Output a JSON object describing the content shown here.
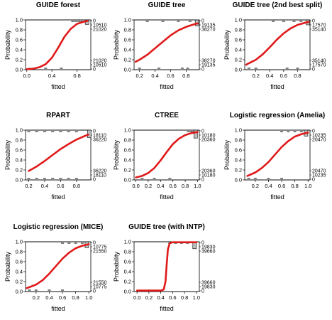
{
  "chart_data": [
    {
      "type": "line",
      "title": "GUIDE forest",
      "xlabel": "fitted",
      "ylabel": "Probability",
      "xlim": [
        -0.02,
        1.02
      ],
      "ylim": [
        0,
        1
      ],
      "xticks": [
        "0.0",
        "0.4",
        "0.8"
      ],
      "xtick_values": [
        0.0,
        0.4,
        0.8
      ],
      "yticks": [
        "0.0",
        "0.2",
        "0.4",
        "0.6",
        "0.8",
        "1.0"
      ],
      "right_axis_labels_top": [
        "0",
        "10510",
        "21020"
      ],
      "right_axis_labels_bottom": [
        "21020",
        "10510",
        "0"
      ],
      "curve": {
        "x": [
          0.0,
          0.1,
          0.2,
          0.3,
          0.4,
          0.5,
          0.6,
          0.7,
          0.8,
          0.9,
          0.97
        ],
        "y": [
          0.01,
          0.02,
          0.05,
          0.11,
          0.24,
          0.44,
          0.66,
          0.82,
          0.92,
          0.96,
          0.98
        ]
      },
      "rug_top": [
        0.73,
        0.78,
        0.83,
        0.88
      ],
      "rug_bottom": [
        0.05,
        0.15,
        0.3,
        0.55
      ],
      "box": {
        "x": 0.96,
        "from": 0.91,
        "to": 1.0
      }
    },
    {
      "type": "line",
      "title": "GUIDE tree",
      "xlabel": "fitted",
      "ylabel": "Probability",
      "xlim": [
        0.13,
        0.97
      ],
      "ylim": [
        0,
        1
      ],
      "xticks": [
        "0.2",
        "0.4",
        "0.6",
        "0.8"
      ],
      "xtick_values": [
        0.2,
        0.4,
        0.6,
        0.8
      ],
      "yticks": [
        "0.0",
        "0.2",
        "0.4",
        "0.6",
        "0.8",
        "1.0"
      ],
      "right_axis_labels_top": [
        "0",
        "19135",
        "38270"
      ],
      "right_axis_labels_bottom": [
        "38270",
        "19135",
        "0"
      ],
      "curve": {
        "x": [
          0.15,
          0.2,
          0.3,
          0.4,
          0.5,
          0.6,
          0.7,
          0.8,
          0.9,
          0.95
        ],
        "y": [
          0.16,
          0.2,
          0.3,
          0.43,
          0.56,
          0.69,
          0.79,
          0.86,
          0.91,
          0.93
        ]
      },
      "rug_top": [
        0.3,
        0.5,
        0.7,
        0.85
      ],
      "rug_bottom": [
        0.2,
        0.45,
        0.75,
        0.82
      ],
      "box": {
        "x": 0.94,
        "from": 0.88,
        "to": 1.0
      }
    },
    {
      "type": "line",
      "title": "GUIDE tree (2nd best split)",
      "xlabel": "fitted",
      "ylabel": "Probability",
      "xlim": [
        0.04,
        0.98
      ],
      "ylim": [
        0,
        1
      ],
      "xticks": [
        "0.2",
        "0.4",
        "0.6",
        "0.8"
      ],
      "xtick_values": [
        0.2,
        0.4,
        0.6,
        0.8
      ],
      "yticks": [
        "0.0",
        "0.2",
        "0.4",
        "0.6",
        "0.8",
        "1.0"
      ],
      "right_axis_labels_top": [
        "0",
        "17570",
        "35140"
      ],
      "right_axis_labels_bottom": [
        "35140",
        "17570",
        "0"
      ],
      "curve": {
        "x": [
          0.06,
          0.1,
          0.2,
          0.3,
          0.4,
          0.5,
          0.6,
          0.7,
          0.8,
          0.9,
          0.96
        ],
        "y": [
          0.1,
          0.13,
          0.2,
          0.31,
          0.45,
          0.6,
          0.73,
          0.83,
          0.9,
          0.94,
          0.96
        ]
      },
      "rug_top": [
        0.45,
        0.6,
        0.75,
        0.85
      ],
      "rug_bottom": [
        0.1,
        0.2,
        0.65,
        0.8
      ],
      "box": {
        "x": 0.95,
        "from": 0.9,
        "to": 1.0
      }
    },
    {
      "type": "line",
      "title": "RPART",
      "xlabel": "fitted",
      "ylabel": "Probability",
      "xlim": [
        0.16,
        0.98
      ],
      "ylim": [
        0,
        1
      ],
      "xticks": [
        "0.2",
        "0.4",
        "0.6",
        "0.8"
      ],
      "xtick_values": [
        0.2,
        0.4,
        0.6,
        0.8
      ],
      "yticks": [
        "0.0",
        "0.2",
        "0.4",
        "0.6",
        "0.8",
        "1.0"
      ],
      "right_axis_labels_top": [
        "0",
        "18110",
        "36220"
      ],
      "right_axis_labels_bottom": [
        "36220",
        "18110",
        "0"
      ],
      "curve": {
        "x": [
          0.2,
          0.3,
          0.4,
          0.5,
          0.6,
          0.7,
          0.8,
          0.9,
          0.95
        ],
        "y": [
          0.18,
          0.27,
          0.38,
          0.5,
          0.62,
          0.72,
          0.81,
          0.88,
          0.91
        ]
      },
      "rug_top": [
        0.2,
        0.3,
        0.4,
        0.5,
        0.6,
        0.7,
        0.8
      ],
      "rug_bottom": [
        0.2,
        0.3,
        0.4,
        0.5,
        0.6,
        0.7,
        0.8
      ],
      "box": {
        "x": 0.96,
        "from": 0.85,
        "to": 1.0
      }
    },
    {
      "type": "line",
      "title": "CTREE",
      "xlabel": "fitted",
      "ylabel": "Probability",
      "xlim": [
        -0.03,
        1.03
      ],
      "ylim": [
        0,
        1
      ],
      "xticks": [
        "0.0",
        "0.2",
        "0.4",
        "0.6",
        "0.8",
        "1.0"
      ],
      "xtick_values": [
        0.0,
        0.2,
        0.4,
        0.6,
        0.8,
        1.0
      ],
      "yticks": [
        "0.0",
        "0.2",
        "0.4",
        "0.6",
        "0.8",
        "1.0"
      ],
      "right_axis_labels_top": [
        "0",
        "10180",
        "20360"
      ],
      "right_axis_labels_bottom": [
        "20360",
        "10180",
        "0"
      ],
      "curve": {
        "x": [
          0.0,
          0.1,
          0.2,
          0.3,
          0.4,
          0.5,
          0.6,
          0.7,
          0.8,
          0.9,
          1.0
        ],
        "y": [
          0.05,
          0.08,
          0.14,
          0.24,
          0.39,
          0.56,
          0.72,
          0.83,
          0.9,
          0.94,
          0.96
        ]
      },
      "rug_top": [
        0.85,
        0.9,
        0.95
      ],
      "rug_bottom": [
        0.1,
        0.3,
        0.55
      ],
      "box": {
        "x": 0.97,
        "from": 0.84,
        "to": 1.0
      }
    },
    {
      "type": "line",
      "title": "Logistic regression (Amelia)",
      "xlabel": "fitted",
      "ylabel": "Probability",
      "xlim": [
        0.04,
        1.03
      ],
      "ylim": [
        0,
        1
      ],
      "xticks": [
        "0.2",
        "0.4",
        "0.6",
        "0.8",
        "1.0"
      ],
      "xtick_values": [
        0.2,
        0.4,
        0.6,
        0.8,
        1.0
      ],
      "yticks": [
        "0.0",
        "0.2",
        "0.4",
        "0.6",
        "0.8",
        "1.0"
      ],
      "right_axis_labels_top": [
        "0",
        "10235",
        "20470"
      ],
      "right_axis_labels_bottom": [
        "20470",
        "10235",
        "0"
      ],
      "curve": {
        "x": [
          0.08,
          0.2,
          0.3,
          0.4,
          0.5,
          0.6,
          0.7,
          0.8,
          0.9,
          1.0
        ],
        "y": [
          0.08,
          0.15,
          0.24,
          0.36,
          0.51,
          0.66,
          0.78,
          0.87,
          0.92,
          0.95
        ]
      },
      "rug_top": [
        0.6,
        0.7,
        0.8,
        0.9
      ],
      "rug_bottom": [
        0.1,
        0.2,
        0.4,
        0.6
      ],
      "box": {
        "x": 0.97,
        "from": 0.88,
        "to": 1.0
      }
    },
    {
      "type": "line",
      "title": "Logistic regression (MICE)",
      "xlabel": "fitted",
      "ylabel": "Probability",
      "xlim": [
        0.04,
        1.03
      ],
      "ylim": [
        0,
        1
      ],
      "xticks": [
        "0.2",
        "0.4",
        "0.6",
        "0.8",
        "1.0"
      ],
      "xtick_values": [
        0.2,
        0.4,
        0.6,
        0.8,
        1.0
      ],
      "yticks": [
        "0.0",
        "0.2",
        "0.4",
        "0.6",
        "0.8",
        "1.0"
      ],
      "right_axis_labels_top": [
        "0",
        "10775",
        "21550"
      ],
      "right_axis_labels_bottom": [
        "21550",
        "10775",
        "0"
      ],
      "curve": {
        "x": [
          0.06,
          0.2,
          0.3,
          0.4,
          0.5,
          0.6,
          0.7,
          0.8,
          0.9,
          1.0
        ],
        "y": [
          0.07,
          0.14,
          0.23,
          0.36,
          0.51,
          0.66,
          0.78,
          0.87,
          0.92,
          0.95
        ]
      },
      "rug_top": [
        0.6,
        0.7,
        0.8,
        0.9
      ],
      "rug_bottom": [
        0.1,
        0.2,
        0.4,
        0.6
      ],
      "box": {
        "x": 0.97,
        "from": 0.88,
        "to": 1.0
      }
    },
    {
      "type": "line",
      "title": "GUIDE tree (with INTP)",
      "xlabel": "fitted",
      "ylabel": "Probability",
      "xlim": [
        -0.05,
        1.05
      ],
      "ylim": [
        0,
        1
      ],
      "xticks": [
        "0.0",
        "0.2",
        "0.4",
        "0.6",
        "0.8",
        "1.0"
      ],
      "xtick_values": [
        0.0,
        0.2,
        0.4,
        0.6,
        0.8,
        1.0
      ],
      "yticks": [
        "0.0",
        "0.2",
        "0.4",
        "0.6",
        "0.8",
        "1.0"
      ],
      "right_axis_labels_top": [
        "0",
        "19830",
        "39660"
      ],
      "right_axis_labels_bottom": [
        "39660",
        "19830",
        "0"
      ],
      "curve": {
        "x": [
          0.0,
          0.2,
          0.4,
          0.45,
          0.48,
          0.5,
          0.52,
          0.55,
          0.6,
          0.8,
          1.0
        ],
        "y": [
          0.02,
          0.02,
          0.02,
          0.04,
          0.2,
          0.55,
          0.85,
          0.97,
          0.99,
          0.99,
          0.99
        ]
      },
      "rug_top": [
        0.55,
        0.65,
        0.75,
        0.85
      ],
      "rug_bottom": [
        0.05,
        0.15,
        0.3,
        0.4
      ],
      "box": {
        "x": 0.97,
        "from": 0.86,
        "to": 1.0
      }
    }
  ],
  "colors": {
    "curve": "#e01a1a",
    "axis": "#000000",
    "box_fill": "#bfbfbf"
  }
}
